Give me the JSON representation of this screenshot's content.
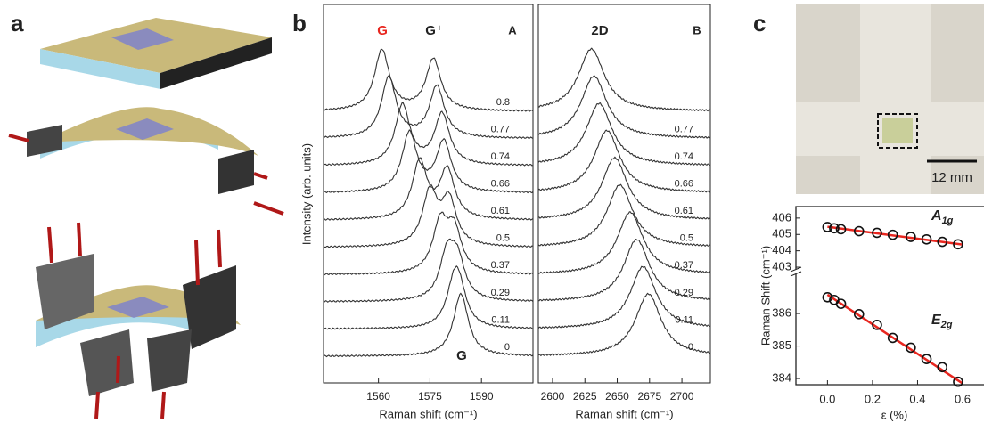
{
  "panel_labels": [
    "a",
    "b",
    "c"
  ],
  "scale_bar": "12 mm",
  "chart_data": [
    {
      "type": "spectra",
      "panel_tag": "A",
      "y_label": "Intensity (arb. units)",
      "x_label": "Raman shift (cm⁻¹)",
      "xlim": [
        1544,
        1605
      ],
      "xticks": [
        1560,
        1575,
        1590
      ],
      "peak_labels": [
        "G⁻",
        "G⁺",
        "G"
      ],
      "peak_label_colors": [
        "#e8261f",
        "#222",
        "#222"
      ],
      "series": [
        {
          "name": "0.8",
          "values": [
            1561,
            1576
          ]
        },
        {
          "name": "0.77",
          "values": [
            1563,
            1577
          ]
        },
        {
          "name": "0.74",
          "values": [
            1567,
            1578.5
          ]
        },
        {
          "name": "0.66",
          "values": [
            1569,
            1579
          ]
        },
        {
          "name": "0.61",
          "values": [
            1572,
            1580
          ]
        },
        {
          "name": "0.5",
          "values": [
            1575,
            1580.5
          ]
        },
        {
          "name": "0.37",
          "values": [
            1578,
            1582
          ]
        },
        {
          "name": "0.29",
          "values": [
            1580,
            1583
          ]
        },
        {
          "name": "0.11",
          "values": [
            1582,
            1583.5
          ]
        },
        {
          "name": "0",
          "values": [
            1584,
            1584
          ]
        }
      ]
    },
    {
      "type": "spectra",
      "panel_tag": "B",
      "x_label": "Raman shift (cm⁻¹)",
      "xlim": [
        2589,
        2722
      ],
      "xticks": [
        2600,
        2625,
        2650,
        2675,
        2700
      ],
      "peak_labels": [
        "2D"
      ],
      "peak_label_colors": [
        "#222"
      ],
      "series": [
        {
          "name": null,
          "values": [
            2630
          ]
        },
        {
          "name": "0.77",
          "values": [
            2632
          ]
        },
        {
          "name": "0.74",
          "values": [
            2636
          ]
        },
        {
          "name": "0.66",
          "values": [
            2642
          ]
        },
        {
          "name": "0.61",
          "values": [
            2648
          ]
        },
        {
          "name": "0.5",
          "values": [
            2652
          ]
        },
        {
          "name": "0.37",
          "values": [
            2660
          ]
        },
        {
          "name": "0.29",
          "values": [
            2665
          ]
        },
        {
          "name": "0.11",
          "values": [
            2670
          ]
        },
        {
          "name": "0",
          "values": [
            2674
          ]
        }
      ]
    },
    {
      "type": "scatter",
      "y_label": "Raman Shift (cm⁻¹)",
      "x_label": "ε (%)",
      "xlim": [
        -0.14,
        0.695
      ],
      "xticks": [
        {
          "value": 0,
          "label": "0.0"
        },
        0.2,
        0.4,
        0.6
      ],
      "ylim_upper": [
        402.73,
        406.7
      ],
      "yticks_upper": [
        403,
        404,
        405,
        406
      ],
      "ylim_lower": [
        383.81,
        387.29
      ],
      "yticks_lower": [
        384,
        385,
        386
      ],
      "x": [
        0,
        0.03,
        0.06,
        0.14,
        0.22,
        0.29,
        0.37,
        0.44,
        0.51,
        0.58
      ],
      "marker_color": "#111",
      "fit_color": "#e8261f",
      "series": [
        {
          "label": "A",
          "label_sub": "1g",
          "values": [
            405.45,
            405.38,
            405.32,
            405.2,
            405.1,
            404.98,
            404.85,
            404.7,
            404.55,
            404.4
          ]
        },
        {
          "label": "E",
          "label_sub": "2g",
          "values": [
            386.5,
            386.42,
            386.3,
            385.98,
            385.65,
            385.25,
            384.95,
            384.6,
            384.35,
            383.9
          ]
        }
      ],
      "fits": [
        {
          "x": [
            0,
            0.6
          ],
          "values": [
            405.47,
            404.38
          ]
        },
        {
          "x": [
            0,
            0.6
          ],
          "values": [
            386.58,
            383.85
          ]
        }
      ]
    }
  ]
}
